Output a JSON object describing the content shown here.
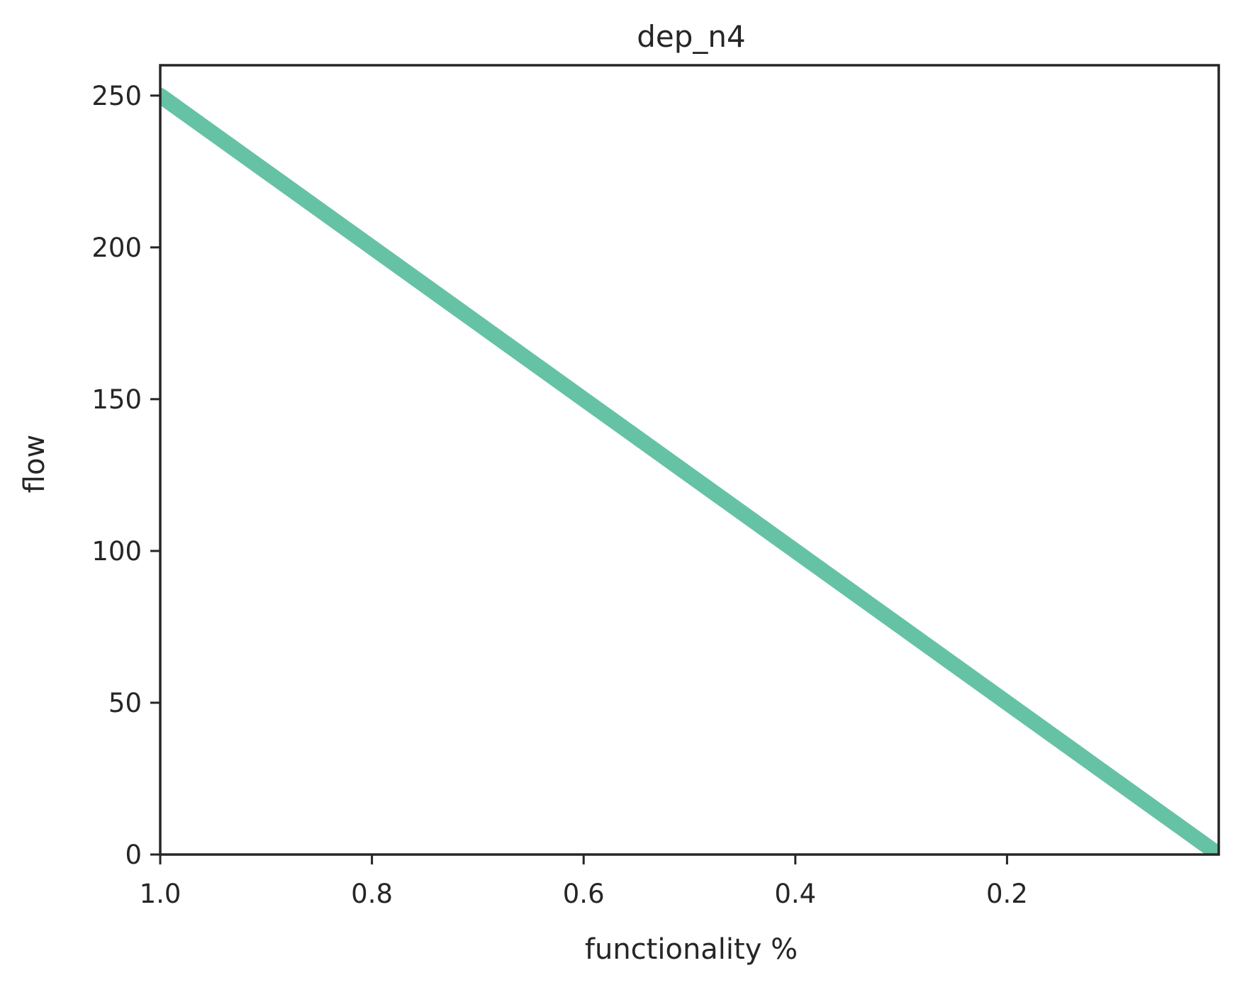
{
  "chart_data": {
    "type": "line",
    "title": "dep_n4",
    "xlabel": "functionality %",
    "ylabel": "flow",
    "xlim": [
      1.0,
      0.0
    ],
    "ylim": [
      0,
      260
    ],
    "x_ticks": [
      {
        "value": 1.0,
        "label": "1.0"
      },
      {
        "value": 0.8,
        "label": "0.8"
      },
      {
        "value": 0.6,
        "label": "0.6"
      },
      {
        "value": 0.4,
        "label": "0.4"
      },
      {
        "value": 0.2,
        "label": "0.2"
      }
    ],
    "y_ticks": [
      {
        "value": 0,
        "label": "0"
      },
      {
        "value": 50,
        "label": "50"
      },
      {
        "value": 100,
        "label": "100"
      },
      {
        "value": 150,
        "label": "150"
      },
      {
        "value": 200,
        "label": "200"
      },
      {
        "value": 250,
        "label": "250"
      }
    ],
    "grid": false,
    "series": [
      {
        "color": "#66c2a5",
        "x": [
          1.0,
          0.8,
          0.6,
          0.4,
          0.2,
          0.0
        ],
        "y": [
          250,
          200,
          150,
          100,
          50,
          0
        ]
      }
    ]
  }
}
